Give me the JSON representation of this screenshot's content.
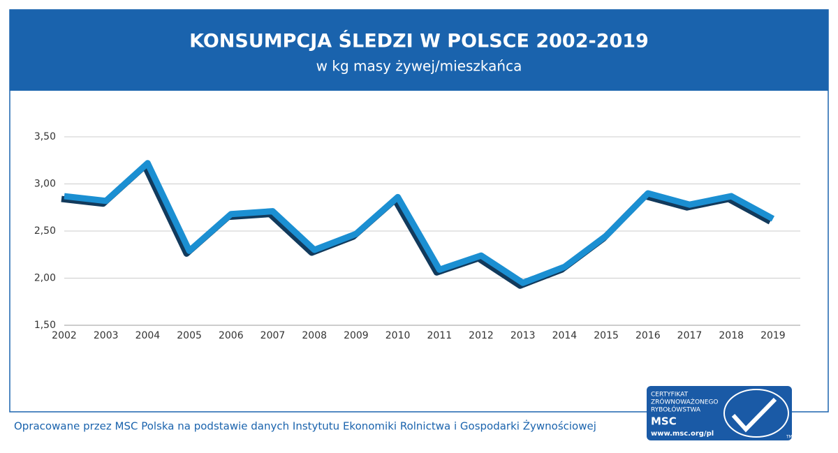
{
  "chart_data": {
    "type": "line",
    "title": "KONSUMPCJA ŚLEDZI W POLSCE 2002-2019",
    "subtitle": "w kg masy żywej/mieszkańca",
    "categories": [
      "2002",
      "2003",
      "2004",
      "2005",
      "2006",
      "2007",
      "2008",
      "2009",
      "2010",
      "2011",
      "2012",
      "2013",
      "2014",
      "2015",
      "2016",
      "2017",
      "2018",
      "2019"
    ],
    "values": [
      2.87,
      2.82,
      3.22,
      2.29,
      2.68,
      2.71,
      2.3,
      2.47,
      2.86,
      2.09,
      2.24,
      1.95,
      2.12,
      2.45,
      2.9,
      2.78,
      2.87,
      2.63
    ],
    "color": "#1b8fd2",
    "ylim": [
      1.5,
      3.5
    ],
    "yticks": [
      {
        "value": 1.5,
        "label": "1,50"
      },
      {
        "value": 2.0,
        "label": "2,00"
      },
      {
        "value": 2.5,
        "label": "2,50"
      },
      {
        "value": 3.0,
        "label": "3,00"
      },
      {
        "value": 3.5,
        "label": "3,50"
      }
    ],
    "grid": true
  },
  "footer": "Opracowane przez MSC Polska na podstawie danych Instytutu Ekonomiki Rolnictwa i Gospodarki Żywnościowej",
  "logo": {
    "lines": [
      "CERTYFIKAT",
      "ZRÓWNOWAŻONEGO",
      "RYBOŁÓWSTWA"
    ],
    "name": "MSC",
    "url": "www.msc.org/pl",
    "tm": "TM"
  }
}
